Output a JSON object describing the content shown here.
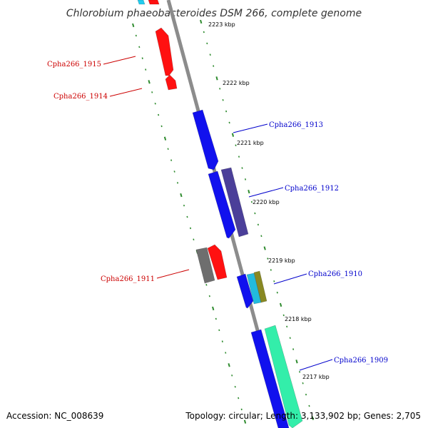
{
  "title": "Chlorobium phaeobacteroides DSM 266, complete genome",
  "footer": {
    "accession": "Accession: NC_008639",
    "summary": "Topology: circular; Length: 3,133,902 bp; Genes: 2,705"
  },
  "colors": {
    "backbone": "#8c8c8c",
    "tick": "#2e8b2e",
    "forward_label": "#0000cc",
    "reverse_label": "#cc0000"
  },
  "kbp_ticks": [
    "2223 kbp",
    "2222 kbp",
    "2221 kbp",
    "2220 kbp",
    "2219 kbp",
    "2218 kbp",
    "2217 kbp"
  ],
  "gene_labels": [
    {
      "text": "Cpha266_1915",
      "strand": "reverse"
    },
    {
      "text": "Cpha266_1914",
      "strand": "reverse"
    },
    {
      "text": "Cpha266_1913",
      "strand": "forward"
    },
    {
      "text": "Cpha266_1912",
      "strand": "forward"
    },
    {
      "text": "Cpha266_1911",
      "strand": "reverse"
    },
    {
      "text": "Cpha266_1910",
      "strand": "forward"
    },
    {
      "text": "Cpha266_1909",
      "strand": "forward"
    }
  ],
  "features": [
    {
      "name": "feature-cyan-top",
      "color": "#22ccee"
    },
    {
      "name": "feature-red-top",
      "color": "#ff1111"
    },
    {
      "name": "gene-cpha266-1915",
      "color": "#ff1111"
    },
    {
      "name": "gene-cpha266-1914",
      "color": "#ff1111"
    },
    {
      "name": "gene-cpha266-1913",
      "color": "#1111ee"
    },
    {
      "name": "gene-cpha266-1912-a",
      "color": "#1111ee"
    },
    {
      "name": "gene-cpha266-1912-b",
      "color": "#4b3f99"
    },
    {
      "name": "gene-cpha266-1911-a",
      "color": "#6e6e6e"
    },
    {
      "name": "gene-cpha266-1911-b",
      "color": "#ff1111"
    },
    {
      "name": "gene-cpha266-1910-a",
      "color": "#1111ee"
    },
    {
      "name": "gene-cpha266-1910-b",
      "color": "#22bbdd"
    },
    {
      "name": "gene-cpha266-1910-c",
      "color": "#888822"
    },
    {
      "name": "gene-cpha266-1909-a",
      "color": "#1111ee"
    },
    {
      "name": "gene-cpha266-1909-b",
      "color": "#33eeaa"
    }
  ]
}
